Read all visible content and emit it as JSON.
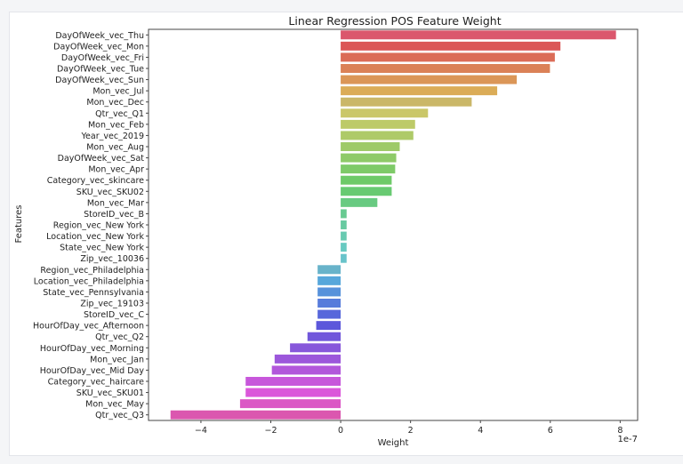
{
  "chart_data": {
    "type": "bar",
    "orientation": "horizontal",
    "title": "Linear Regression POS Feature Weight",
    "xlabel": "Weight",
    "ylabel": "Features",
    "x_offset_label": "1e-7",
    "xlim": [
      -5.5,
      8.5
    ],
    "xticks": [
      -4,
      -2,
      0,
      2,
      4,
      6,
      8
    ],
    "xtick_labels": [
      "−4",
      "−2",
      "0",
      "2",
      "4",
      "6",
      "8"
    ],
    "grid": false,
    "palette": "husl",
    "categories": [
      "DayOfWeek_vec_Thu",
      "DayOfWeek_vec_Mon",
      "DayOfWeek_vec_Fri",
      "DayOfWeek_vec_Tue",
      "DayOfWeek_vec_Sun",
      "Mon_vec_Jul",
      "Mon_vec_Dec",
      "Qtr_vec_Q1",
      "Mon_vec_Feb",
      "Year_vec_2019",
      "Mon_vec_Aug",
      "DayOfWeek_vec_Sat",
      "Mon_vec_Apr",
      "Category_vec_skincare",
      "SKU_vec_SKU02",
      "Mon_vec_Mar",
      "StoreID_vec_B",
      "Region_vec_New York",
      "Location_vec_New York",
      "State_vec_New York",
      "Zip_vec_10036",
      "Region_vec_Philadelphia",
      "Location_vec_Philadelphia",
      "State_vec_Pennsylvania",
      "Zip_vec_19103",
      "StoreID_vec_C",
      "HourOfDay_vec_Afternoon",
      "Qtr_vec_Q2",
      "HourOfDay_vec_Morning",
      "Mon_vec_Jan",
      "HourOfDay_vec_Mid Day",
      "Category_vec_haircare",
      "SKU_vec_SKU01",
      "Mon_vec_May",
      "Qtr_vec_Q3"
    ],
    "values": [
      7.88,
      6.29,
      6.13,
      5.99,
      5.04,
      4.48,
      3.75,
      2.5,
      2.13,
      2.08,
      1.69,
      1.59,
      1.56,
      1.46,
      1.46,
      1.05,
      0.17,
      0.17,
      0.17,
      0.17,
      0.17,
      -0.66,
      -0.66,
      -0.66,
      -0.66,
      -0.66,
      -0.7,
      -0.95,
      -1.45,
      -1.89,
      -1.97,
      -2.72,
      -2.72,
      -2.88,
      -4.87
    ],
    "value_scale": "1e-7"
  }
}
